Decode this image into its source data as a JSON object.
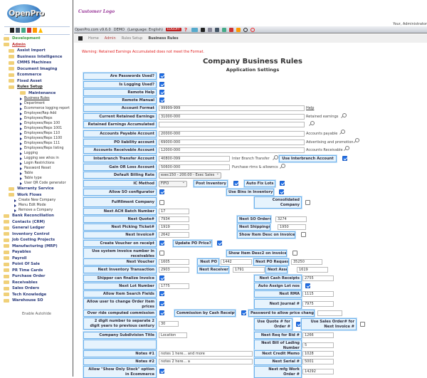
{
  "header": {
    "logo_text": "OpenPro",
    "customer_logo": "Customer Logo",
    "user": "Your, Administrator"
  },
  "toolbar": {
    "version": "OpenPro.com v9.6.0",
    "mode": "DEMO",
    "language": "(Language: English)",
    "logoff": "LOGOFF"
  },
  "breadcrumb": [
    "Home",
    "Admin",
    "Rules Setup",
    "Business Rules"
  ],
  "sidebar": {
    "items": [
      {
        "label": "Development",
        "level": 0,
        "style": "green"
      },
      {
        "label": "Admin",
        "level": 0,
        "style": "red"
      },
      {
        "label": "Assist Import",
        "level": 1
      },
      {
        "label": "Business Intelligence",
        "level": 1
      },
      {
        "label": "CMMS Machines",
        "level": 1
      },
      {
        "label": "Document Imaging",
        "level": 1
      },
      {
        "label": "Ecommerce",
        "level": 1
      },
      {
        "label": "Fixed Asset",
        "level": 1
      },
      {
        "label": "Rules Setup",
        "level": 1,
        "style": "ul"
      },
      {
        "label": "Maintenance",
        "level": 2
      },
      {
        "label": "Business Rules",
        "level": 3,
        "style": "ul"
      },
      {
        "label": "Department",
        "level": 3
      },
      {
        "label": "Ecommerce logging report",
        "level": 3
      },
      {
        "label": "Employee/Rep Add",
        "level": 3
      },
      {
        "label": "Employees/Reps",
        "level": 3
      },
      {
        "label": "Employees/Reps 100",
        "level": 3
      },
      {
        "label": "Employees/Reps 1001",
        "level": 3
      },
      {
        "label": "Employees/Reps 110",
        "level": 3
      },
      {
        "label": "Employees/Reps 1100",
        "level": 3
      },
      {
        "label": "Employees/Reps 111",
        "level": 3
      },
      {
        "label": "Employees/Reps listing",
        "level": 3
      },
      {
        "label": "Logging",
        "level": 3
      },
      {
        "label": "Logging see whos in",
        "level": 3
      },
      {
        "label": "Login Restrictions",
        "level": 3
      },
      {
        "label": "Password Reset",
        "level": 3
      },
      {
        "label": "Table",
        "level": 3
      },
      {
        "label": "Table type",
        "level": 3
      },
      {
        "label": "User QR Code generator",
        "level": 3
      },
      {
        "label": "Warranty Service",
        "level": 1
      },
      {
        "label": "Work Flows",
        "level": 1
      },
      {
        "label": "Create New Company",
        "level": 4
      },
      {
        "label": "Menu Edit Mode",
        "level": 4
      },
      {
        "label": "Remove a Company",
        "level": 4
      },
      {
        "label": "Bank Reconciliation",
        "level": 0
      },
      {
        "label": "Contacts (CRM)",
        "level": 0
      },
      {
        "label": "General Ledger",
        "level": 0
      },
      {
        "label": "Inventory Control",
        "level": 0
      },
      {
        "label": "Job Costing Projects",
        "level": 0
      },
      {
        "label": "Manufacturing (MRP)",
        "level": 0
      },
      {
        "label": "Payables",
        "level": 0
      },
      {
        "label": "Payroll",
        "level": 0
      },
      {
        "label": "Point Of Sale",
        "level": 0
      },
      {
        "label": "PR Time Cards",
        "level": 0
      },
      {
        "label": "Purchase Order",
        "level": 0
      },
      {
        "label": "Receivables",
        "level": 0
      },
      {
        "label": "Sales Orders",
        "level": 0
      },
      {
        "label": "Tech Knowledge",
        "level": 0
      },
      {
        "label": "Warehouse SO",
        "level": 0
      }
    ],
    "autohide": "Enable Autohide"
  },
  "page": {
    "warning": "Warning: Retained Earnings Accumulated does not meet the Format.",
    "title": "Company Business Rules",
    "subtitle": "Application Settings"
  },
  "form": {
    "L": {
      "passwords": "Are Passwords Used?",
      "logging": "Is Logging Used?",
      "remote_help": "Remote Help",
      "remote_manual": "Remote Manual",
      "account_format": "Account Format",
      "current_re": "Current Retained Earnings",
      "re_accum": "Retained Earnings Accumulated",
      "ap": "Accounts Payable Account",
      "po_liab": "PO liability account",
      "ar": "Accounts Receivable Account",
      "interbranch": "Interbranch Transfer Account",
      "gain_loss": "Gain OR Loss Account",
      "billing_rate": "Default Billing Rate",
      "ic_method": "IC Method",
      "post_inv": "Post Inventory",
      "auto_fix": "Auto Fix Lots",
      "so_config": "Allow SO configurator",
      "use_bins": "Use Bins in Inventory",
      "fulfillment": "Fulfillment Company",
      "consolidated": "Consolidated Company",
      "ach": "Next ACH Batch Number",
      "quote": "Next Quote#",
      "so_order": "Next SO Order#",
      "picking": "Next Picking Ticket#",
      "shipping": "Next Shipping#",
      "invoice": "Next Invoice#",
      "show_desc": "Show Item Desc on invoice",
      "create_voucher": "Create Voucher on receipt",
      "update_po": "Update PO Price?",
      "sys_invoice": "Use system invoice number in receivables",
      "show_desc2": "Show Item Desc2 on invoice",
      "voucher": "Next Voucher",
      "po": "Next PO",
      "po_request": "Next PO Request",
      "inv_trans": "Next Inventory Transaction",
      "receiver": "Next Receiver",
      "asset": "Next Asset #",
      "shipper": "Shipper can finalize Invoice",
      "cash_receipts": "Next Cash Receipts",
      "lot": "Next Lot Number",
      "auto_lot": "Auto Assign Lot nos",
      "item_search": "Allow Item Search Fields",
      "rma": "Next RMA",
      "change_price": "Allow user to change Order item prices",
      "journal": "Next Journal #",
      "override": "Over ride computed commission",
      "comm_cash": "Commission by Cash Receipts",
      "pw_price": "Password to allow price change",
      "two_digit": "2 digit number to separate 2 digit years to previous century",
      "quote_order": "Use Quote # for Order #",
      "so_invoice": "Use Sales Order# for Next Invoice #",
      "subdivision": "Company Subdivision Title",
      "req_bid": "Next Req for Bid #",
      "bill_lading": "Next Bill of Lading Number",
      "notes1": "Notes #1",
      "credit_memo": "Next Credit Memo",
      "notes2": "Notes #2",
      "serial": "Next Serial #",
      "show_stock": "Allow \"Show Only Stock\" option in Ecommerce",
      "mfg_wo": "Next mfg Work Order #"
    },
    "V": {
      "account_format": "99999-999",
      "current_re": "31000-000",
      "re_accum": "",
      "ap": "20000-000",
      "po_liab": "69000-000",
      "ar": "12000-000",
      "interbranch": "40800-099",
      "gain_loss": "50600-000",
      "billing_rate": "exec150 - 200.00 - Exec Sales",
      "ic_method": "FIFO",
      "ach": "17",
      "quote": "7934",
      "so_order": "3274",
      "picking": "1919",
      "shipping": "1950",
      "invoice": "2642",
      "voucher": "1605",
      "po": "1442",
      "po_request": "35250",
      "inv_trans": "2903",
      "receiver": "1791",
      "asset": "1619",
      "cash_receipts": "2755",
      "lot": "1775",
      "rma": "1115",
      "journal": "7975",
      "pw_price": "",
      "two_digit": "30",
      "subdivision": "Location",
      "req_bid": "1266",
      "bill_lading": "5",
      "notes1": "notes 1 here... and more",
      "credit_memo": "1028",
      "notes2": "notes 2 here...  a",
      "serial": "5001",
      "mfg_wo": "14292"
    },
    "T": {
      "help": "Help",
      "current_re": "Retained earnings",
      "ap": "Accounts payable",
      "po_liab": "Advertising and promotion",
      "ar": "Accounts Receivable",
      "interbranch": "Inter Branch Transfer",
      "gain_loss": "Purchase rtrns & allowncs",
      "use_interbranch": "Use Interbranch Account"
    },
    "C": {
      "passwords": true,
      "logging": true,
      "remote_help": true,
      "remote_manual": true,
      "use_interbranch": true,
      "post_inv": true,
      "auto_fix": true,
      "so_config": true,
      "use_bins": true,
      "fulfillment": false,
      "consolidated": false,
      "show_desc": false,
      "create_voucher": true,
      "update_po": true,
      "sys_invoice": false,
      "show_desc2": false,
      "shipper": true,
      "auto_lot": true,
      "item_search": true,
      "change_price": true,
      "override": true,
      "comm_cash": true,
      "quote_order": true,
      "so_invoice": false,
      "show_stock": true
    }
  }
}
